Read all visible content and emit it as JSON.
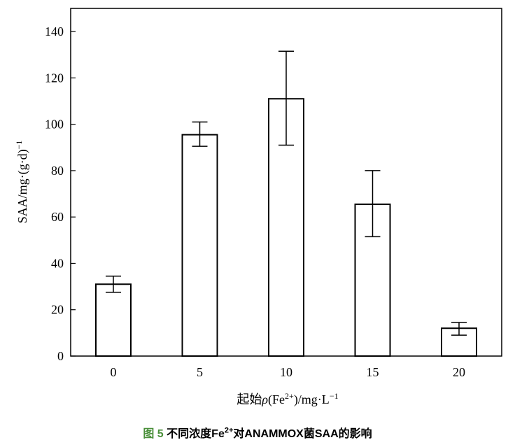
{
  "chart_data": {
    "type": "bar",
    "categories": [
      "0",
      "5",
      "10",
      "15",
      "20"
    ],
    "values": [
      31,
      95.5,
      111,
      65.5,
      12
    ],
    "error_low": [
      27.5,
      90.5,
      91,
      51.5,
      9
    ],
    "error_high": [
      34.5,
      101,
      131.5,
      80,
      14.5
    ],
    "ylim": [
      0,
      150
    ],
    "yticks": [
      "0",
      "20",
      "40",
      "60",
      "80",
      "100",
      "120",
      "140"
    ],
    "ylabel": "SAA/mg·(g·d)",
    "ylabel_superscript": "−1",
    "xlabel_prefix": "起始",
    "xlabel_rho": "ρ",
    "xlabel_mid": "(Fe",
    "xlabel_sup1": "2+",
    "xlabel_mid2": ")/mg·L",
    "xlabel_sup2": "−1",
    "bar_fill": "#ffffff",
    "bar_stroke": "#000000",
    "grid": false
  },
  "caption": {
    "figure_label": "图 5",
    "text_before": "不同浓度Fe",
    "superscript": "2+",
    "text_after": "对ANAMMOX菌SAA的影响",
    "label_color": "#4a8f3a"
  }
}
